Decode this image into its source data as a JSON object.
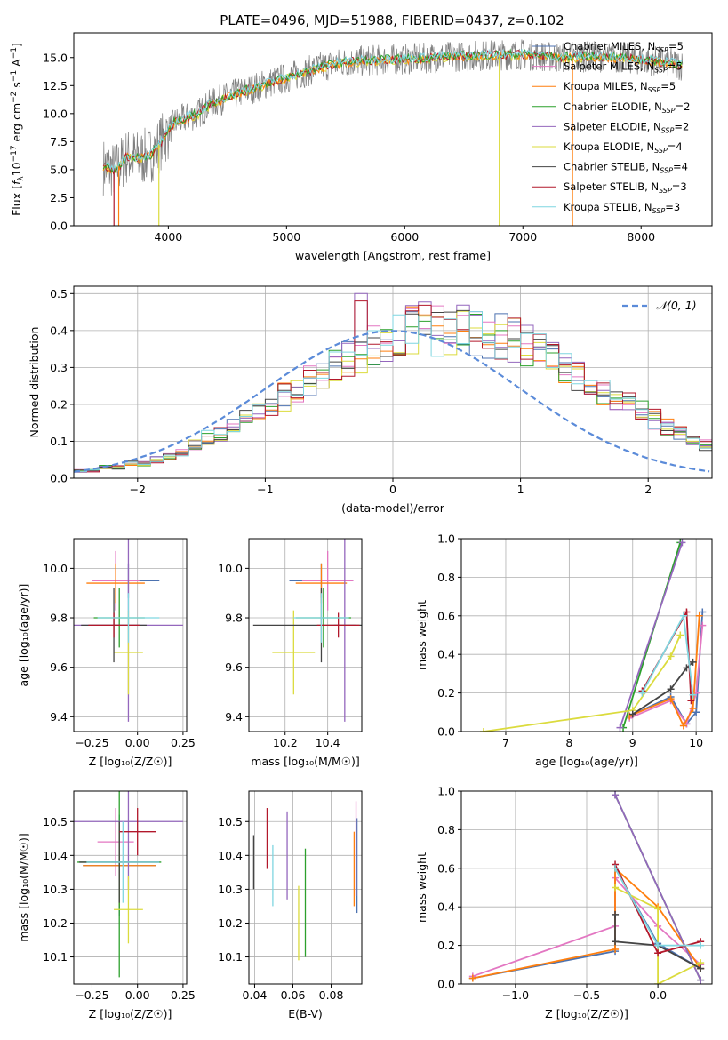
{
  "figure_title": "PLATE=0496, MJD=51988, FIBERID=0437, z=0.102",
  "colors": {
    "chabrier_miles": "#4c72b0",
    "salpeter_miles": "#e377c2",
    "kroupa_miles": "#ff7f0e",
    "chabrier_elodie": "#2ca02c",
    "salpeter_elodie": "#9467bd",
    "kroupa_elodie": "#dbdb3d",
    "chabrier_stelib": "#444444",
    "salpeter_stelib": "#b2182b",
    "kroupa_stelib": "#7fd6e0",
    "normal_curve": "#5b8bd9",
    "data_spectrum": "#7f7f7f",
    "grid": "#b0b0b0"
  },
  "legend_main": [
    {
      "label": "Chabrier MILES, N",
      "sub": "SSP",
      "suffix": "=5"
    },
    {
      "label": "Salpeter MILES, N",
      "sub": "SSP",
      "suffix": "=5"
    },
    {
      "label": "Kroupa MILES, N",
      "sub": "SSP",
      "suffix": "=5"
    },
    {
      "label": "Chabrier ELODIE, N",
      "sub": "SSP",
      "suffix": "=2"
    },
    {
      "label": "Salpeter ELODIE, N",
      "sub": "SSP",
      "suffix": "=2"
    },
    {
      "label": "Kroupa ELODIE, N",
      "sub": "SSP",
      "suffix": "=4"
    },
    {
      "label": "Chabrier STELIB, N",
      "sub": "SSP",
      "suffix": "=4"
    },
    {
      "label": "Salpeter STELIB, N",
      "sub": "SSP",
      "suffix": "=3"
    },
    {
      "label": "Kroupa STELIB, N",
      "sub": "SSP",
      "suffix": "=3"
    }
  ],
  "chart_data": [
    {
      "id": "spectrum",
      "type": "line",
      "xlabel": "wavelength [Angstrom, rest frame]",
      "ylabel_parts": [
        "Flux [",
        "f",
        "λ",
        "10",
        "−17",
        " erg cm",
        "−2",
        " s",
        "−1",
        " A",
        "−1",
        "]"
      ],
      "xlim": [
        3200,
        8600
      ],
      "ylim": [
        0,
        17.2
      ],
      "xticks": [
        4000,
        5000,
        6000,
        7000,
        8000
      ],
      "yticks": [
        0.0,
        2.5,
        5.0,
        7.5,
        10.0,
        12.5,
        15.0
      ],
      "continuum": {
        "x": [
          3450,
          3550,
          3650,
          3750,
          3850,
          3950,
          4050,
          4150,
          4250,
          4350,
          4500,
          4700,
          4900,
          5100,
          5300,
          5500,
          5800,
          6100,
          6400,
          6700,
          7000,
          7300,
          7600,
          7900,
          8200,
          8350
        ],
        "y": [
          5.3,
          4.9,
          6.2,
          6.0,
          6.3,
          7.6,
          9.2,
          9.6,
          10.0,
          10.8,
          11.5,
          12.2,
          12.9,
          13.5,
          14.2,
          14.6,
          14.8,
          14.9,
          15.1,
          15.2,
          15.3,
          15.0,
          15.1,
          14.9,
          14.6,
          14.3
        ]
      },
      "spikes": [
        {
          "x": 3540,
          "y": 0
        },
        {
          "x": 3580,
          "y": 0
        },
        {
          "x": 3920,
          "y": 0
        },
        {
          "x": 6800,
          "y": 0
        },
        {
          "x": 7420,
          "y": 0
        }
      ]
    },
    {
      "id": "residuals",
      "type": "histogram",
      "xlabel": "(data-model)/error",
      "ylabel": "Normed distribution",
      "legend": "𝒩(0, 1)",
      "xlim": [
        -2.5,
        2.5
      ],
      "ylim": [
        0,
        0.52
      ],
      "xticks": [
        -2,
        -1,
        0,
        1,
        2
      ],
      "xticklabels": [
        "−2",
        "−1",
        "0",
        "1",
        "2"
      ],
      "yticks": [
        0.0,
        0.1,
        0.2,
        0.3,
        0.4,
        0.5
      ],
      "bin_width": 0.1,
      "bin_start": -2.5,
      "base_values": [
        0.02,
        0.02,
        0.03,
        0.03,
        0.04,
        0.04,
        0.05,
        0.06,
        0.07,
        0.09,
        0.11,
        0.12,
        0.14,
        0.16,
        0.18,
        0.2,
        0.22,
        0.24,
        0.26,
        0.28,
        0.3,
        0.33,
        0.34,
        0.36,
        0.37,
        0.38,
        0.4,
        0.41,
        0.4,
        0.39,
        0.4,
        0.4,
        0.39,
        0.38,
        0.37,
        0.36,
        0.34,
        0.32,
        0.3,
        0.28,
        0.26,
        0.24,
        0.22,
        0.2,
        0.18,
        0.16,
        0.14,
        0.12,
        0.1,
        0.09,
        0.08,
        0.07,
        0.06,
        0.05,
        0.04,
        0.04,
        0.03,
        0.03,
        0.02,
        0.02
      ]
    },
    {
      "id": "age_vs_z",
      "type": "errorbar",
      "xlabel": "Z [log₁₀(Z/Z☉)]",
      "ylabel": "age  [log₁₀(age/yr)]",
      "xlim": [
        -0.35,
        0.27
      ],
      "ylim": [
        9.34,
        10.12
      ],
      "xticks": [
        -0.25,
        0.0,
        0.25
      ],
      "xticklabels": [
        "−0.25",
        "0.00",
        "0.25"
      ],
      "yticks": [
        9.4,
        9.6,
        9.8,
        10.0
      ],
      "points": [
        {
          "c": "chabrier_miles",
          "x": -0.05,
          "xe": 0.17,
          "y": 9.95,
          "ye": 0.07
        },
        {
          "c": "salpeter_miles",
          "x": -0.12,
          "xe": 0.13,
          "y": 9.95,
          "ye": 0.12
        },
        {
          "c": "kroupa_miles",
          "x": -0.12,
          "xe": 0.16,
          "y": 9.94,
          "ye": 0.08
        },
        {
          "c": "chabrier_elodie",
          "x": -0.1,
          "xe": 0.14,
          "y": 9.8,
          "ye": 0.12
        },
        {
          "c": "salpeter_elodie",
          "x": -0.05,
          "xe": 0.3,
          "y": 9.77,
          "ye": 0.39
        },
        {
          "c": "kroupa_elodie",
          "x": -0.05,
          "xe": 0.08,
          "y": 9.66,
          "ye": 0.17
        },
        {
          "c": "chabrier_stelib",
          "x": -0.13,
          "xe": 0.18,
          "y": 9.77,
          "ye": 0.15
        },
        {
          "c": "salpeter_stelib",
          "x": -0.13,
          "xe": 0.14,
          "y": 9.77,
          "ye": 0.05
        },
        {
          "c": "kroupa_stelib",
          "x": -0.05,
          "xe": 0.17,
          "y": 9.8,
          "ye": 0.1
        }
      ]
    },
    {
      "id": "age_vs_mass",
      "type": "errorbar",
      "xlabel": "mass [log₁₀(M/M☉)]",
      "ylabel": "",
      "xlim": [
        10.03,
        10.56
      ],
      "ylim": [
        9.34,
        10.12
      ],
      "xticks": [
        10.2,
        10.4
      ],
      "xticklabels": [
        "10.2",
        "10.4"
      ],
      "yticks": [
        9.4,
        9.6,
        9.8,
        10.0
      ],
      "points": [
        {
          "c": "chabrier_miles",
          "x": 10.37,
          "xe": 0.15,
          "y": 9.95,
          "ye": 0.07
        },
        {
          "c": "salpeter_miles",
          "x": 10.4,
          "xe": 0.12,
          "y": 9.95,
          "ye": 0.12
        },
        {
          "c": "kroupa_miles",
          "x": 10.37,
          "xe": 0.12,
          "y": 9.94,
          "ye": 0.08
        },
        {
          "c": "chabrier_elodie",
          "x": 10.38,
          "xe": 0.13,
          "y": 9.8,
          "ye": 0.12
        },
        {
          "c": "salpeter_elodie",
          "x": 10.48,
          "xe": 0.05,
          "y": 9.77,
          "ye": 0.39
        },
        {
          "c": "kroupa_elodie",
          "x": 10.24,
          "xe": 0.1,
          "y": 9.66,
          "ye": 0.17
        },
        {
          "c": "chabrier_stelib",
          "x": 10.37,
          "xe": 0.32,
          "y": 9.77,
          "ye": 0.15
        },
        {
          "c": "salpeter_stelib",
          "x": 10.45,
          "xe": 0.1,
          "y": 9.77,
          "ye": 0.05
        },
        {
          "c": "kroupa_stelib",
          "x": 10.37,
          "xe": 0.13,
          "y": 9.8,
          "ye": 0.1
        }
      ]
    },
    {
      "id": "weight_vs_age",
      "type": "line",
      "xlabel": "age  [log₁₀(age/yr)]",
      "ylabel": "mass weight",
      "xlim": [
        6.3,
        10.25
      ],
      "ylim": [
        0,
        1.0
      ],
      "xticks": [
        7,
        8,
        9,
        10
      ],
      "yticks": [
        0.0,
        0.2,
        0.4,
        0.6,
        0.8,
        1.0
      ],
      "series": [
        {
          "c": "chabrier_miles",
          "x": [
            8.95,
            9.6,
            9.85,
            10.0,
            10.1
          ],
          "y": [
            0.08,
            0.18,
            0.04,
            0.1,
            0.62
          ]
        },
        {
          "c": "salpeter_miles",
          "x": [
            8.95,
            9.6,
            9.85,
            10.0,
            10.1
          ],
          "y": [
            0.07,
            0.16,
            0.04,
            0.2,
            0.55
          ]
        },
        {
          "c": "kroupa_miles",
          "x": [
            8.95,
            9.6,
            9.8,
            9.95,
            10.05
          ],
          "y": [
            0.08,
            0.17,
            0.03,
            0.12,
            0.6
          ]
        },
        {
          "c": "chabrier_elodie",
          "x": [
            8.85,
            9.75
          ],
          "y": [
            0.02,
            0.98
          ]
        },
        {
          "c": "salpeter_elodie",
          "x": [
            8.8,
            9.78
          ],
          "y": [
            0.02,
            0.98
          ]
        },
        {
          "c": "kroupa_elodie",
          "x": [
            6.65,
            9.0,
            9.6,
            9.75
          ],
          "y": [
            0.0,
            0.11,
            0.39,
            0.5
          ]
        },
        {
          "c": "chabrier_stelib",
          "x": [
            9.0,
            9.6,
            9.85,
            9.95
          ],
          "y": [
            0.09,
            0.22,
            0.33,
            0.36
          ]
        },
        {
          "c": "salpeter_stelib",
          "x": [
            9.15,
            9.85,
            9.92
          ],
          "y": [
            0.21,
            0.62,
            0.16
          ]
        },
        {
          "c": "kroupa_stelib",
          "x": [
            9.15,
            9.8,
            9.95
          ],
          "y": [
            0.2,
            0.6,
            0.19
          ]
        }
      ]
    },
    {
      "id": "mass_vs_z",
      "type": "errorbar",
      "xlabel": "Z [log₁₀(Z/Z☉)]",
      "ylabel": "mass [log₁₀(M/M☉)]",
      "xlim": [
        -0.35,
        0.27
      ],
      "ylim": [
        10.02,
        10.59
      ],
      "xticks": [
        -0.25,
        0.0,
        0.25
      ],
      "xticklabels": [
        "−0.25",
        "0.00",
        "0.25"
      ],
      "yticks": [
        10.1,
        10.2,
        10.3,
        10.4,
        10.5
      ],
      "points": [
        {
          "c": "chabrier_miles",
          "x": -0.1,
          "xe": 0.2,
          "y": 10.37,
          "ye": 0.15
        },
        {
          "c": "salpeter_miles",
          "x": -0.12,
          "xe": 0.1,
          "y": 10.44,
          "ye": 0.1
        },
        {
          "c": "kroupa_miles",
          "x": -0.1,
          "xe": 0.2,
          "y": 10.37,
          "ye": 0.12
        },
        {
          "c": "chabrier_elodie",
          "x": -0.1,
          "xe": 0.23,
          "y": 10.38,
          "ye": 0.34
        },
        {
          "c": "salpeter_elodie",
          "x": -0.05,
          "xe": 0.3,
          "y": 10.5,
          "ye": 0.2
        },
        {
          "c": "kroupa_elodie",
          "x": -0.05,
          "xe": 0.08,
          "y": 10.24,
          "ye": 0.1
        },
        {
          "c": "chabrier_stelib",
          "x": -0.1,
          "xe": 0.22,
          "y": 10.38,
          "ye": 0.12
        },
        {
          "c": "salpeter_stelib",
          "x": 0.0,
          "xe": 0.1,
          "y": 10.47,
          "ye": 0.07
        },
        {
          "c": "kroupa_stelib",
          "x": -0.08,
          "xe": 0.2,
          "y": 10.38,
          "ye": 0.12
        }
      ]
    },
    {
      "id": "mass_vs_ebv",
      "type": "errorbar",
      "xlabel": "E(B-V)",
      "ylabel": "",
      "xlim": [
        0.037,
        0.096
      ],
      "ylim": [
        10.02,
        10.59
      ],
      "xticks": [
        0.04,
        0.06,
        0.08
      ],
      "xticklabels": [
        "0.04",
        "0.06",
        "0.08"
      ],
      "yticks": [
        10.1,
        10.2,
        10.3,
        10.4,
        10.5
      ],
      "points": [
        {
          "c": "chabrier_miles",
          "x": 0.0935,
          "xe": 0,
          "y": 10.37,
          "ye": 0.14
        },
        {
          "c": "salpeter_miles",
          "x": 0.093,
          "xe": 0,
          "y": 10.42,
          "ye": 0.14
        },
        {
          "c": "kroupa_miles",
          "x": 0.092,
          "xe": 0,
          "y": 10.36,
          "ye": 0.11
        },
        {
          "c": "chabrier_elodie",
          "x": 0.0665,
          "xe": 0,
          "y": 10.26,
          "ye": 0.16
        },
        {
          "c": "salpeter_elodie",
          "x": 0.057,
          "xe": 0,
          "y": 10.4,
          "ye": 0.13
        },
        {
          "c": "kroupa_elodie",
          "x": 0.063,
          "xe": 0,
          "y": 10.2,
          "ye": 0.11
        },
        {
          "c": "chabrier_stelib",
          "x": 0.0395,
          "xe": 0,
          "y": 10.38,
          "ye": 0.08
        },
        {
          "c": "salpeter_stelib",
          "x": 0.0465,
          "xe": 0,
          "y": 10.45,
          "ye": 0.09
        },
        {
          "c": "kroupa_stelib",
          "x": 0.0495,
          "xe": 0,
          "y": 10.34,
          "ye": 0.09
        }
      ]
    },
    {
      "id": "weight_vs_z",
      "type": "line",
      "xlabel": "Z [log₁₀(Z/Z☉)]",
      "ylabel": "mass weight",
      "xlim": [
        -1.38,
        0.38
      ],
      "ylim": [
        0,
        1.0
      ],
      "xticks": [
        -1.0,
        -0.5,
        0.0
      ],
      "xticklabels": [
        "−1.0",
        "−0.5",
        "0.0"
      ],
      "yticks": [
        0.0,
        0.2,
        0.4,
        0.6,
        0.8,
        1.0
      ],
      "series": [
        {
          "c": "chabrier_miles",
          "x": [
            -1.3,
            -0.3,
            -0.3,
            0.0,
            0.3
          ],
          "y": [
            0.03,
            0.17,
            0.6,
            0.21,
            0.08
          ]
        },
        {
          "c": "salpeter_miles",
          "x": [
            -1.3,
            -0.3,
            -0.3,
            0.0,
            0.3
          ],
          "y": [
            0.04,
            0.3,
            0.55,
            0.3,
            0.1
          ]
        },
        {
          "c": "kroupa_miles",
          "x": [
            -1.3,
            -0.3,
            -0.3,
            0.0,
            0.3
          ],
          "y": [
            0.03,
            0.18,
            0.6,
            0.4,
            0.08
          ]
        },
        {
          "c": "chabrier_elodie",
          "x": [
            -0.3,
            0.3
          ],
          "y": [
            0.98,
            0.02
          ]
        },
        {
          "c": "salpeter_elodie",
          "x": [
            -0.3,
            0.3
          ],
          "y": [
            0.98,
            0.02
          ]
        },
        {
          "c": "kroupa_elodie",
          "x": [
            -0.3,
            0.0,
            0.0,
            0.3
          ],
          "y": [
            0.5,
            0.39,
            0.0,
            0.11
          ]
        },
        {
          "c": "chabrier_stelib",
          "x": [
            -0.3,
            -0.3,
            0.0,
            0.3
          ],
          "y": [
            0.36,
            0.22,
            0.2,
            0.08
          ]
        },
        {
          "c": "salpeter_stelib",
          "x": [
            -0.3,
            0.0,
            0.3
          ],
          "y": [
            0.62,
            0.16,
            0.22
          ]
        },
        {
          "c": "kroupa_stelib",
          "x": [
            -0.3,
            0.0,
            0.3
          ],
          "y": [
            0.6,
            0.2,
            0.2
          ]
        }
      ]
    }
  ]
}
